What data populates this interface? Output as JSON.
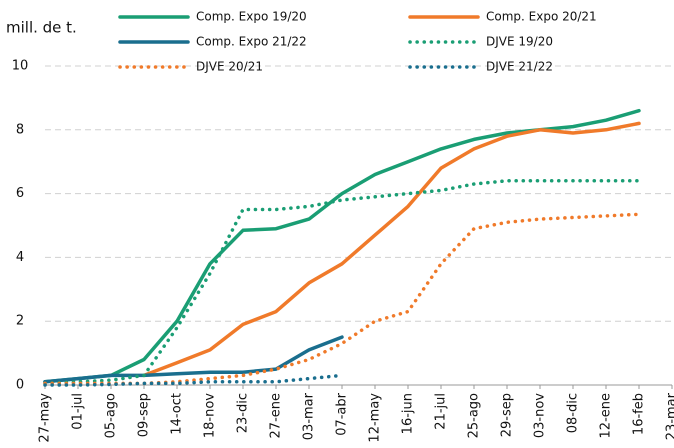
{
  "chart_data": {
    "type": "line",
    "y_label": "mill. de t.",
    "categories": [
      "27-may",
      "01-jul",
      "05-ago",
      "09-sep",
      "14-oct",
      "18-nov",
      "23-dic",
      "27-ene",
      "03-mar",
      "07-abr",
      "12-may",
      "16-jun",
      "21-jul",
      "25-ago",
      "29-sep",
      "03-nov",
      "08-dic",
      "12-ene",
      "16-feb",
      "23-mar"
    ],
    "series": [
      {
        "name": "Comp. Expo 19/20",
        "color": "#1a9e74",
        "style": "solid",
        "values": [
          0.1,
          0.2,
          0.3,
          0.8,
          2.0,
          3.8,
          4.85,
          4.9,
          5.2,
          6.0,
          6.6,
          7.0,
          7.4,
          7.7,
          7.9,
          8.0,
          8.1,
          8.3,
          8.6,
          null
        ]
      },
      {
        "name": "Comp. Expo 20/21",
        "color": "#f07a2a",
        "style": "solid",
        "values": [
          null,
          null,
          null,
          0.3,
          0.7,
          1.1,
          1.9,
          2.3,
          3.2,
          3.8,
          4.7,
          5.6,
          6.8,
          7.4,
          7.8,
          8.0,
          7.9,
          8.0,
          8.2,
          null
        ]
      },
      {
        "name": "Comp. Expo 21/22",
        "color": "#1a6e8e",
        "style": "solid",
        "values": [
          0.1,
          0.2,
          0.3,
          0.3,
          0.35,
          0.4,
          0.4,
          0.5,
          1.1,
          1.5,
          null,
          null,
          null,
          null,
          null,
          null,
          null,
          null,
          null,
          null
        ]
      },
      {
        "name": "DJVE 19/20",
        "color": "#1a9e74",
        "style": "dotted",
        "values": [
          0.05,
          0.1,
          0.15,
          0.3,
          1.8,
          3.5,
          5.5,
          5.5,
          5.6,
          5.8,
          5.9,
          6.0,
          6.1,
          6.3,
          6.4,
          6.4,
          6.4,
          6.4,
          6.4,
          null
        ]
      },
      {
        "name": "DJVE 20/21",
        "color": "#f07a2a",
        "style": "dotted",
        "values": [
          0.05,
          0.05,
          0.05,
          0.05,
          0.1,
          0.2,
          0.3,
          0.5,
          0.8,
          1.3,
          2.0,
          2.3,
          3.8,
          4.9,
          5.1,
          5.2,
          5.25,
          5.3,
          5.35,
          null
        ]
      },
      {
        "name": "DJVE 21/22",
        "color": "#1a6e8e",
        "style": "dotted",
        "values": [
          0.0,
          0.0,
          0.02,
          0.05,
          0.05,
          0.1,
          0.1,
          0.1,
          0.2,
          0.3,
          null,
          null,
          null,
          null,
          null,
          null,
          null,
          null,
          null,
          null
        ]
      }
    ],
    "ylim": [
      0,
      10
    ],
    "yticks": [
      0,
      2,
      4,
      6,
      8,
      10
    ],
    "grid": true
  }
}
